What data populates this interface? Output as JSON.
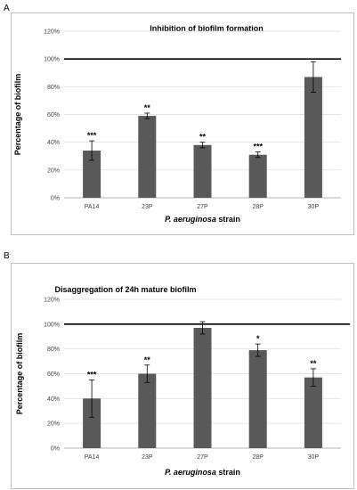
{
  "panels": {
    "a": {
      "letter": "A"
    },
    "b": {
      "letter": "B"
    }
  },
  "colors": {
    "bar": "#595959",
    "grid": "#d9d9d9",
    "reference": "#000000",
    "frame": "#bfbfbf"
  },
  "chart_data": [
    {
      "type": "bar",
      "title": "Inhibition of biofilm formation",
      "xlabel_italic": "P. aeruginosa",
      "xlabel_rest": " strain",
      "ylabel": "Percentage of biofilm",
      "categories": [
        "PA14",
        "23P",
        "27P",
        "28P",
        "30P"
      ],
      "values": [
        34,
        59,
        38,
        31,
        87
      ],
      "errors": [
        7,
        2,
        2,
        2,
        11
      ],
      "significance": [
        "***",
        "**",
        "**",
        "***",
        ""
      ],
      "ylim": [
        0,
        120
      ],
      "yticks": [
        0,
        20,
        40,
        60,
        80,
        100,
        120
      ],
      "ytick_labels": [
        "0%",
        "20%",
        "40%",
        "60%",
        "80%",
        "100%",
        "120%"
      ],
      "reference_line": 100,
      "grid": true,
      "legend": "none"
    },
    {
      "type": "bar",
      "title": "Disaggregation of 24h mature biofilm",
      "xlabel_italic": "P. aeruginosa",
      "xlabel_rest": " strain",
      "ylabel": "Percentage of biofilm",
      "categories": [
        "PA14",
        "23P",
        "27P",
        "28P",
        "30P"
      ],
      "values": [
        40,
        60,
        97,
        79,
        57
      ],
      "errors": [
        15,
        7,
        5,
        5,
        7
      ],
      "significance": [
        "***",
        "**",
        "",
        "*",
        "**"
      ],
      "ylim": [
        0,
        120
      ],
      "yticks": [
        0,
        20,
        40,
        60,
        80,
        100,
        120
      ],
      "ytick_labels": [
        "0%",
        "20%",
        "40%",
        "60%",
        "80%",
        "100%",
        "120%"
      ],
      "reference_line": 100,
      "grid": true,
      "legend": "none"
    }
  ]
}
